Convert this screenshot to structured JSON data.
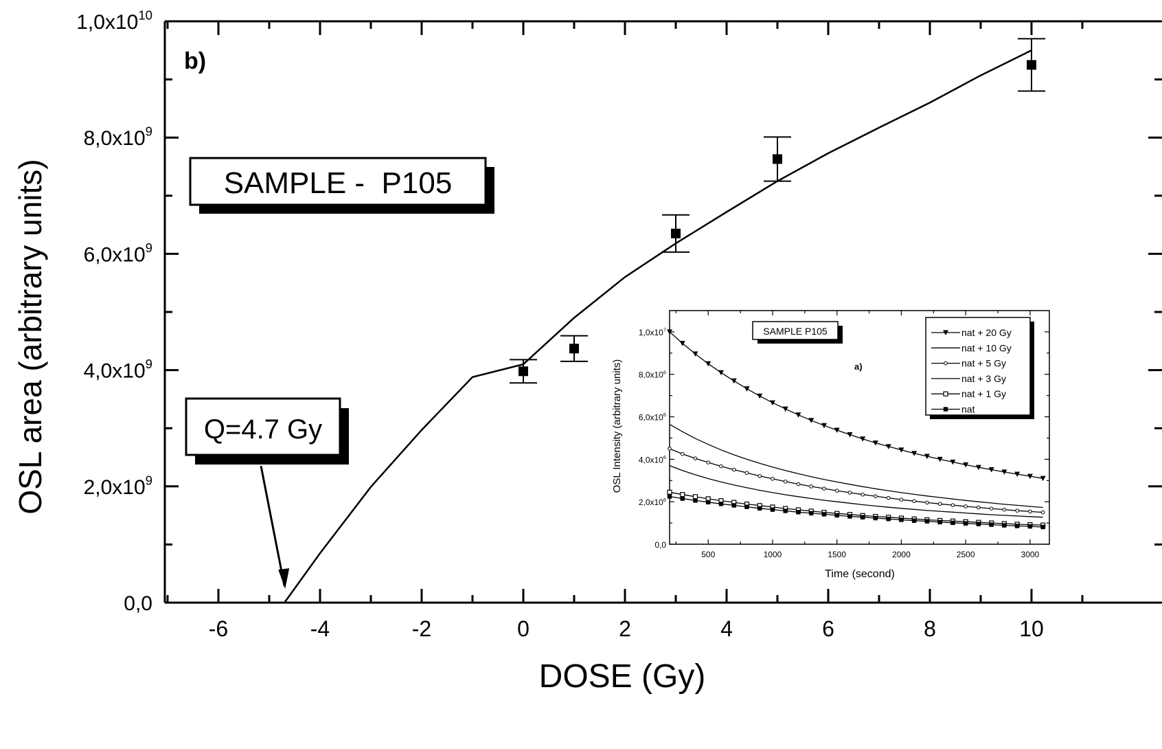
{
  "chart_data": [
    {
      "type": "scatter",
      "panel_label": "b)",
      "xlabel": "DOSE (Gy)",
      "ylabel": "OSL area (arbitrary units)",
      "xlim": [
        -7,
        11
      ],
      "ylim": [
        0,
        10000000000.0
      ],
      "x_ticks": [
        -6,
        -4,
        -2,
        0,
        2,
        4,
        6,
        8,
        10
      ],
      "x_tick_labels": [
        "-6",
        "-4",
        "-2",
        "0",
        "2",
        "4",
        "6",
        "8",
        "10"
      ],
      "y_ticks": [
        0,
        2000000000.0,
        4000000000.0,
        6000000000.0,
        8000000000.0,
        10000000000.0
      ],
      "y_tick_labels": [
        {
          "mant": "0,0",
          "exp": ""
        },
        {
          "mant": "2,0x10",
          "exp": "9"
        },
        {
          "mant": "4,0x10",
          "exp": "9"
        },
        {
          "mant": "6,0x10",
          "exp": "9"
        },
        {
          "mant": "8,0x10",
          "exp": "9"
        },
        {
          "mant": "1,0x10",
          "exp": "10"
        }
      ],
      "series": [
        {
          "kind": "points_with_error_bars",
          "x": [
            0,
            1,
            3,
            5,
            10
          ],
          "y": [
            3980000000.0,
            4370000000.0,
            6350000000.0,
            7630000000.0,
            9250000000.0
          ],
          "err": [
            200000000.0,
            220000000.0,
            320000000.0,
            380000000.0,
            450000000.0
          ]
        },
        {
          "kind": "fit_line",
          "x": [
            -4.7,
            -4,
            -3,
            -2,
            -1,
            0,
            1,
            2,
            3,
            4,
            5,
            6,
            7,
            8,
            9,
            10
          ],
          "y": [
            0,
            850000000.0,
            1990000000.0,
            2970000000.0,
            3880000000.0,
            4100000000.0,
            4900000000.0,
            5600000000.0,
            6180000000.0,
            6720000000.0,
            7250000000.0,
            7730000000.0,
            8170000000.0,
            8600000000.0,
            9070000000.0,
            9500000000.0
          ]
        }
      ],
      "annotations": {
        "sample_box": "SAMPLE -  P105",
        "q_box": "Q=4.7 Gy",
        "arrow_target_x": -4.7
      }
    },
    {
      "type": "line",
      "panel_label": "a)",
      "title": "SAMPLE P105",
      "xlabel": "Time (second)",
      "ylabel": "OSL Intensity (arbitrary units)",
      "xlim": [
        200,
        3150
      ],
      "ylim": [
        0,
        11000000.0
      ],
      "x_ticks": [
        500,
        1000,
        1500,
        2000,
        2500,
        3000
      ],
      "x_tick_labels": [
        "500",
        "1000",
        "1500",
        "2000",
        "2500",
        "3000"
      ],
      "y_ticks": [
        0,
        2000000.0,
        4000000.0,
        6000000.0,
        8000000.0,
        10000000.0
      ],
      "y_tick_labels": [
        {
          "mant": "0,0",
          "exp": ""
        },
        {
          "mant": "2,0x10",
          "exp": "6"
        },
        {
          "mant": "4,0x10",
          "exp": "6"
        },
        {
          "mant": "6,0x10",
          "exp": "6"
        },
        {
          "mant": "8,0x10",
          "exp": "6"
        },
        {
          "mant": "1,0x10",
          "exp": "7"
        }
      ],
      "x": [
        200,
        300,
        400,
        500,
        600,
        700,
        800,
        900,
        1000,
        1100,
        1200,
        1300,
        1400,
        1500,
        1600,
        1700,
        1800,
        1900,
        2000,
        2100,
        2200,
        2300,
        2400,
        2500,
        2600,
        2700,
        2800,
        2900,
        3000,
        3100
      ],
      "series": [
        {
          "name": "nat + 20 Gy",
          "marker": "triangle-down-filled",
          "values": [
            10.0,
            9.46,
            8.96,
            8.5,
            8.08,
            7.69,
            7.32,
            6.98,
            6.66,
            6.37,
            6.09,
            5.83,
            5.59,
            5.37,
            5.16,
            4.96,
            4.77,
            4.6,
            4.44,
            4.28,
            4.14,
            4.0,
            3.87,
            3.74,
            3.62,
            3.51,
            3.4,
            3.3,
            3.2,
            3.1
          ]
        },
        {
          "name": "nat + 10 Gy",
          "marker": "none",
          "values": [
            5.65,
            5.3,
            4.98,
            4.7,
            4.44,
            4.21,
            4.0,
            3.81,
            3.63,
            3.47,
            3.32,
            3.18,
            3.05,
            2.93,
            2.82,
            2.71,
            2.61,
            2.52,
            2.43,
            2.35,
            2.27,
            2.2,
            2.13,
            2.06,
            2.0,
            1.94,
            1.88,
            1.83,
            1.78,
            1.73
          ]
        },
        {
          "name": "nat + 5 Gy",
          "marker": "circle-small-open",
          "values": [
            4.5,
            4.25,
            4.04,
            3.85,
            3.67,
            3.51,
            3.36,
            3.21,
            3.08,
            2.95,
            2.83,
            2.72,
            2.62,
            2.52,
            2.43,
            2.34,
            2.26,
            2.18,
            2.1,
            2.03,
            1.96,
            1.9,
            1.84,
            1.78,
            1.73,
            1.68,
            1.63,
            1.58,
            1.54,
            1.5
          ]
        },
        {
          "name": "nat + 3 Gy",
          "marker": "none",
          "values": [
            3.7,
            3.47,
            3.27,
            3.09,
            2.93,
            2.79,
            2.66,
            2.54,
            2.43,
            2.33,
            2.24,
            2.15,
            2.07,
            2.0,
            1.93,
            1.86,
            1.8,
            1.74,
            1.69,
            1.64,
            1.59,
            1.55,
            1.51,
            1.47,
            1.43,
            1.39,
            1.36,
            1.33,
            1.3,
            1.27
          ]
        },
        {
          "name": "nat + 1 Gy",
          "marker": "square-open",
          "values": [
            2.45,
            2.34,
            2.24,
            2.14,
            2.05,
            1.97,
            1.89,
            1.82,
            1.75,
            1.68,
            1.62,
            1.56,
            1.5,
            1.45,
            1.4,
            1.35,
            1.31,
            1.27,
            1.23,
            1.19,
            1.15,
            1.12,
            1.09,
            1.06,
            1.03,
            1.0,
            0.97,
            0.94,
            0.92,
            0.9
          ]
        },
        {
          "name": "nat",
          "marker": "square-filled",
          "values": [
            2.25,
            2.15,
            2.06,
            1.98,
            1.9,
            1.83,
            1.76,
            1.69,
            1.63,
            1.57,
            1.51,
            1.46,
            1.41,
            1.36,
            1.31,
            1.27,
            1.23,
            1.19,
            1.15,
            1.11,
            1.08,
            1.04,
            1.01,
            0.98,
            0.95,
            0.92,
            0.89,
            0.86,
            0.84,
            0.81
          ]
        }
      ],
      "series_value_scale": 1000000.0,
      "legend_placement": "top-right"
    }
  ]
}
